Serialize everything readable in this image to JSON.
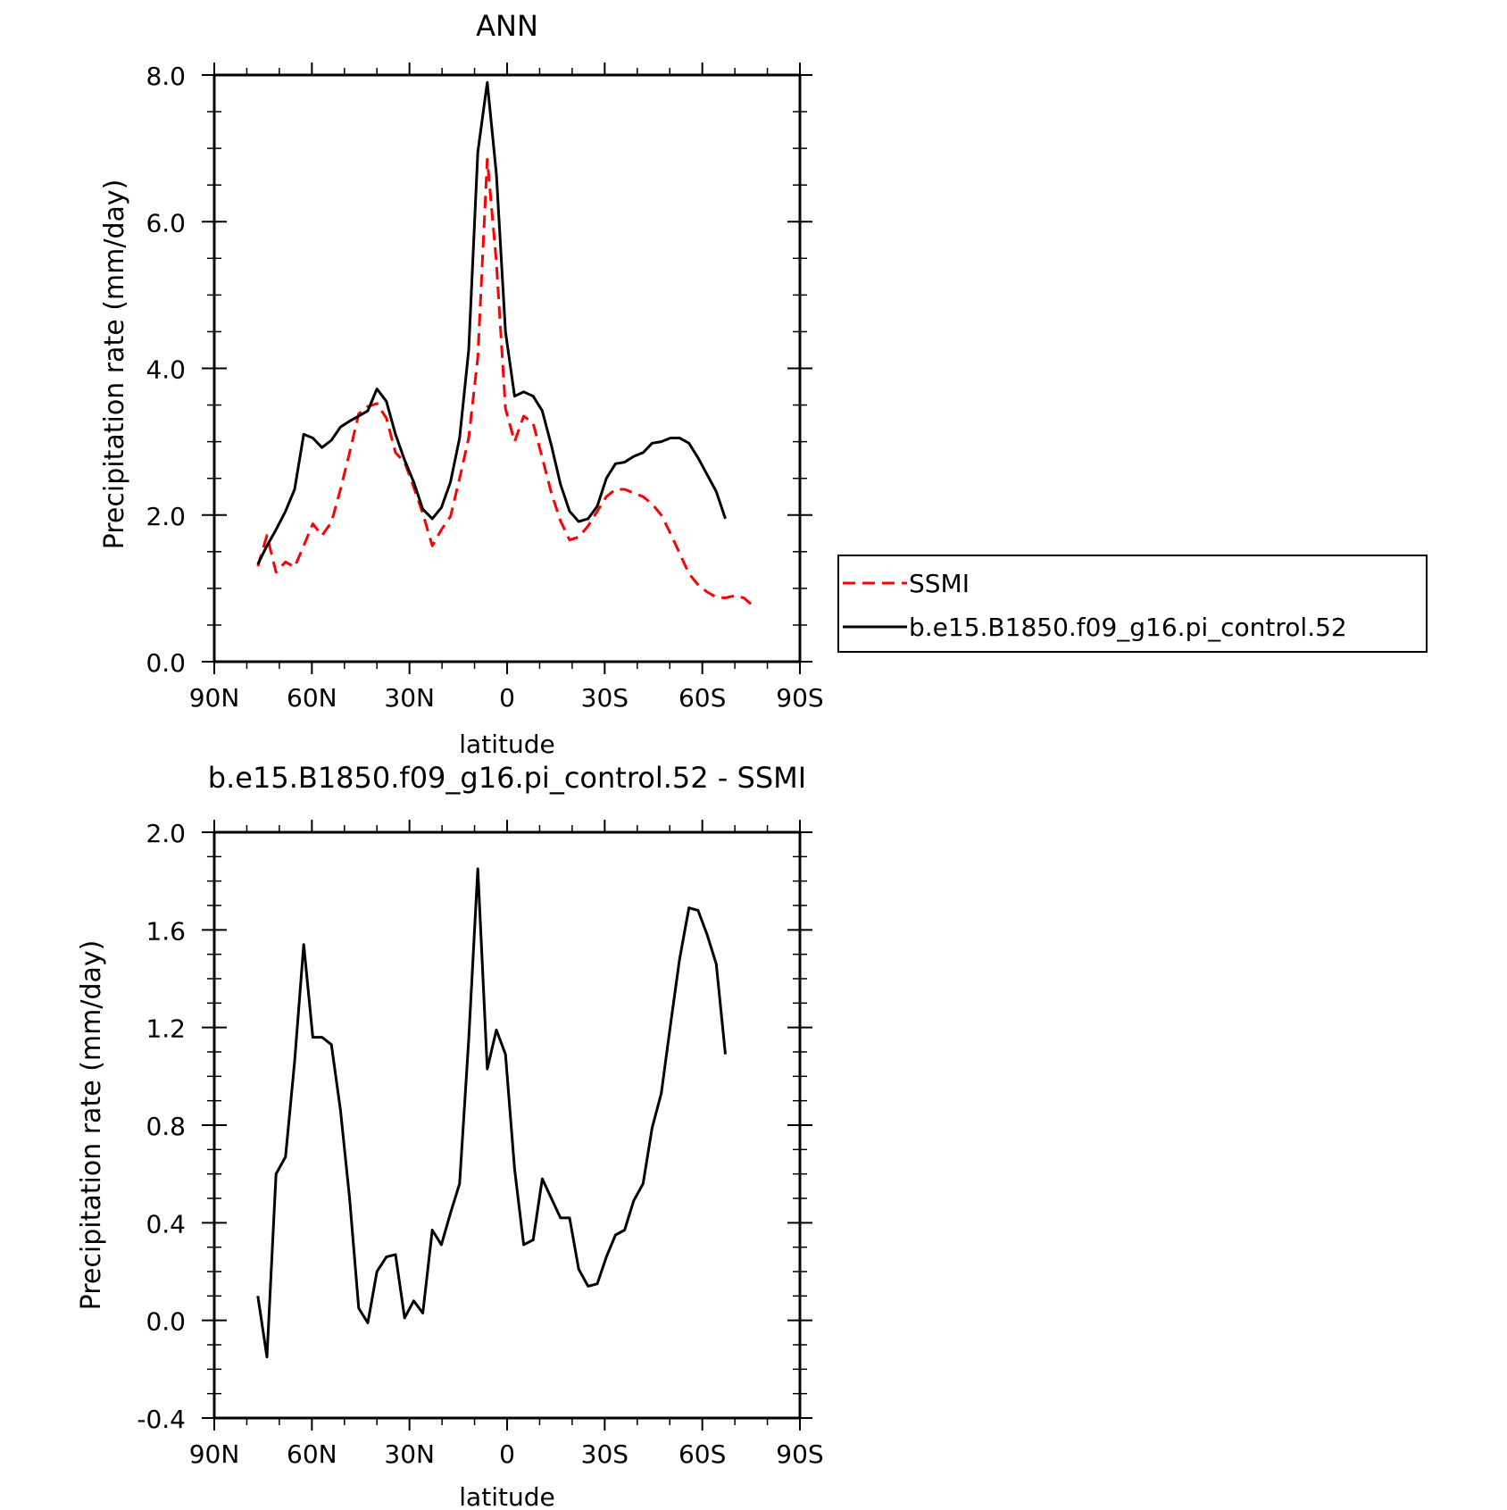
{
  "chart_data": [
    {
      "type": "line",
      "title": "ANN",
      "xlabel": "latitude",
      "ylabel": "Precipitation rate (mm/day)",
      "xlim": [
        90,
        -90
      ],
      "ylim": [
        0,
        8
      ],
      "x_ticks": [
        90,
        60,
        30,
        0,
        -30,
        -60,
        -90
      ],
      "x_tick_labels": [
        "90N",
        "60N",
        "30N",
        "0",
        "30S",
        "60S",
        "90S"
      ],
      "y_ticks": [
        0,
        2,
        4,
        6,
        8
      ],
      "y_tick_labels": [
        "0.0",
        "2.0",
        "4.0",
        "6.0",
        "8.0"
      ],
      "legend_position": "right",
      "series": [
        {
          "name": "SSMI",
          "color": "#ff0000",
          "dash": "dashed",
          "x": [
            76.6,
            73.8,
            71.0,
            68.1,
            65.3,
            62.5,
            59.7,
            56.9,
            54.0,
            51.2,
            48.4,
            45.6,
            42.8,
            40.0,
            37.1,
            34.3,
            31.5,
            28.7,
            25.9,
            23.0,
            20.2,
            17.4,
            14.6,
            11.8,
            9.0,
            6.1,
            3.3,
            0.5,
            -2.3,
            -5.1,
            -8.0,
            -10.8,
            -13.6,
            -16.4,
            -19.2,
            -22.0,
            -24.9,
            -27.7,
            -30.5,
            -33.3,
            -36.1,
            -38.9,
            -41.8,
            -44.6,
            -47.4,
            -50.2,
            -53.0,
            -55.9,
            -58.7,
            -61.5,
            -64.3,
            -67.1,
            -69.9,
            -72.8,
            -75.6
          ],
          "y": [
            1.3,
            1.72,
            1.22,
            1.36,
            1.29,
            1.58,
            1.88,
            1.72,
            1.9,
            2.35,
            2.85,
            3.38,
            3.48,
            3.52,
            3.32,
            2.85,
            2.72,
            2.38,
            2.02,
            1.58,
            1.8,
            1.98,
            2.5,
            3.05,
            4.15,
            6.85,
            5.45,
            3.45,
            3.0,
            3.35,
            3.25,
            2.78,
            2.3,
            1.92,
            1.66,
            1.7,
            1.85,
            2.05,
            2.25,
            2.35,
            2.35,
            2.3,
            2.25,
            2.15,
            2.0,
            1.75,
            1.48,
            1.2,
            1.05,
            0.95,
            0.88,
            0.87,
            0.9,
            0.87,
            0.76
          ]
        },
        {
          "name": "b.e15.B1850.f09_g16.pi_control.52",
          "color": "#000000",
          "dash": "solid",
          "x": [
            76.6,
            73.8,
            71.0,
            68.1,
            65.3,
            62.5,
            59.7,
            56.9,
            54.0,
            51.2,
            48.4,
            45.6,
            42.8,
            40.0,
            37.1,
            34.3,
            31.5,
            28.7,
            25.9,
            23.0,
            20.2,
            17.4,
            14.6,
            11.8,
            9.0,
            6.1,
            3.3,
            0.5,
            -2.3,
            -5.1,
            -8.0,
            -10.8,
            -13.6,
            -16.4,
            -19.2,
            -22.0,
            -24.9,
            -27.7,
            -30.5,
            -33.3,
            -36.1,
            -38.9,
            -41.8,
            -44.6,
            -47.4,
            -50.2,
            -53.0,
            -55.9,
            -58.7,
            -61.5,
            -64.3,
            -67.1
          ],
          "y": [
            1.33,
            1.58,
            1.8,
            2.05,
            2.35,
            3.1,
            3.05,
            2.92,
            3.02,
            3.2,
            3.28,
            3.35,
            3.42,
            3.72,
            3.55,
            3.1,
            2.75,
            2.45,
            2.08,
            1.95,
            2.1,
            2.45,
            3.05,
            4.25,
            6.95,
            7.9,
            6.65,
            4.5,
            3.62,
            3.68,
            3.62,
            3.42,
            2.95,
            2.42,
            2.05,
            1.91,
            1.95,
            2.12,
            2.5,
            2.7,
            2.72,
            2.8,
            2.85,
            2.98,
            3.0,
            3.05,
            3.05,
            2.98,
            2.78,
            2.55,
            2.32,
            1.95
          ]
        }
      ]
    },
    {
      "type": "line",
      "title": "b.e15.B1850.f09_g16.pi_control.52 - SSMI",
      "xlabel": "latitude",
      "ylabel": "Precipitation rate (mm/day)",
      "xlim": [
        90,
        -90
      ],
      "ylim": [
        -0.4,
        2.0
      ],
      "x_ticks": [
        90,
        60,
        30,
        0,
        -30,
        -60,
        -90
      ],
      "x_tick_labels": [
        "90N",
        "60N",
        "30N",
        "0",
        "30S",
        "60S",
        "90S"
      ],
      "y_ticks": [
        -0.4,
        0,
        0.4,
        0.8,
        1.2,
        1.6,
        2.0
      ],
      "y_tick_labels": [
        "-0.4",
        "0.0",
        "0.4",
        "0.8",
        "1.2",
        "1.6",
        "2.0"
      ],
      "series": [
        {
          "color": "#000000",
          "dash": "solid",
          "x": [
            76.6,
            73.8,
            71.0,
            68.1,
            65.3,
            62.5,
            59.7,
            56.9,
            54.0,
            51.2,
            48.4,
            45.6,
            42.8,
            40.0,
            37.1,
            34.3,
            31.5,
            28.7,
            25.9,
            23.0,
            20.2,
            17.4,
            14.6,
            11.8,
            9.0,
            6.1,
            3.3,
            0.5,
            -2.3,
            -5.1,
            -8.0,
            -10.8,
            -13.6,
            -16.4,
            -19.2,
            -22.0,
            -24.9,
            -27.7,
            -30.5,
            -33.3,
            -36.1,
            -38.9,
            -41.8,
            -44.6,
            -47.4,
            -50.2,
            -53.0,
            -55.9,
            -58.7,
            -61.5,
            -64.3,
            -67.1
          ],
          "y": [
            0.1,
            -0.15,
            0.6,
            0.67,
            1.06,
            1.54,
            1.16,
            1.16,
            1.13,
            0.86,
            0.5,
            0.05,
            -0.01,
            0.2,
            0.26,
            0.27,
            0.01,
            0.08,
            0.03,
            0.37,
            0.31,
            0.44,
            0.56,
            1.15,
            1.85,
            1.03,
            1.19,
            1.09,
            0.62,
            0.31,
            0.33,
            0.58,
            0.5,
            0.42,
            0.42,
            0.21,
            0.14,
            0.15,
            0.26,
            0.35,
            0.37,
            0.49,
            0.56,
            0.79,
            0.93,
            1.21,
            1.48,
            1.69,
            1.68,
            1.58,
            1.46,
            1.09
          ]
        }
      ]
    }
  ]
}
